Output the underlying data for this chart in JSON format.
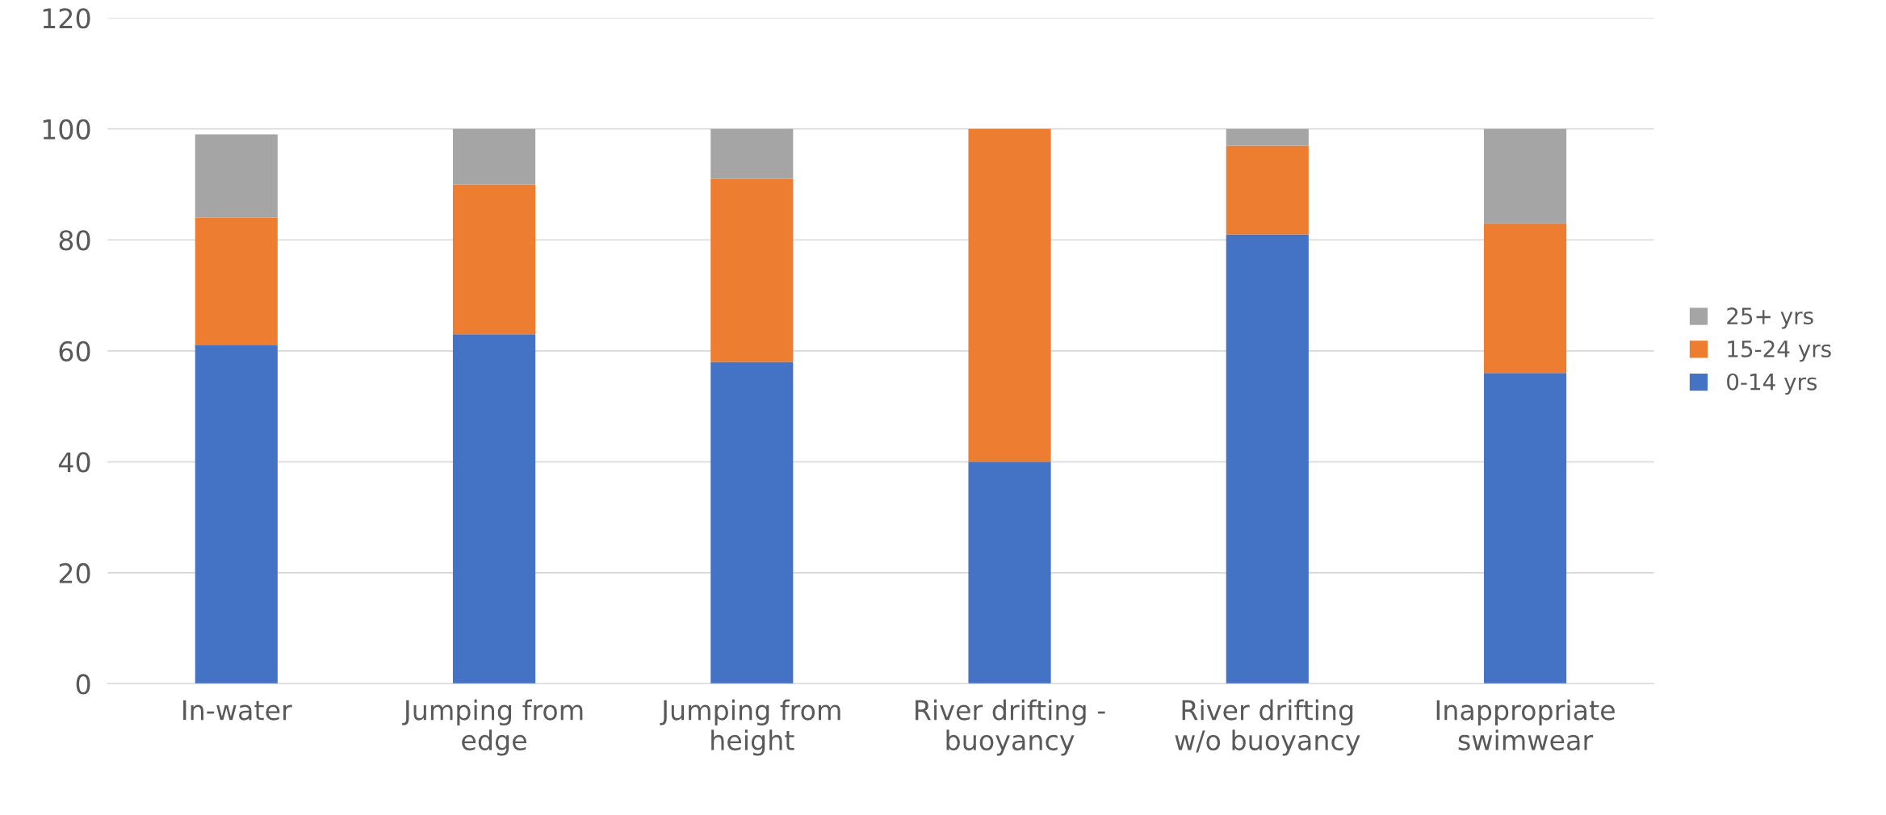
{
  "chart_data": {
    "type": "bar",
    "stacked": true,
    "categories": [
      "In-water",
      "Jumping from\nedge",
      "Jumping from\nheight",
      "River drifting -\nbuoyancy",
      "River drifting\nw/o buoyancy",
      "Inappropriate\nswimwear"
    ],
    "series": [
      {
        "name": "0-14 yrs",
        "color": "#4472c4",
        "values": [
          61,
          63,
          58,
          40,
          81,
          56
        ]
      },
      {
        "name": "15-24 yrs",
        "color": "#ed7d31",
        "values": [
          23,
          27,
          33,
          60,
          16,
          27
        ]
      },
      {
        "name": "25+ yrs",
        "color": "#a5a5a5",
        "values": [
          15,
          10,
          9,
          0,
          3,
          17
        ]
      }
    ],
    "ylim": [
      0,
      120
    ],
    "yticks": [
      0,
      20,
      40,
      60,
      80,
      100,
      120
    ],
    "grid": "y",
    "legend": "right"
  }
}
